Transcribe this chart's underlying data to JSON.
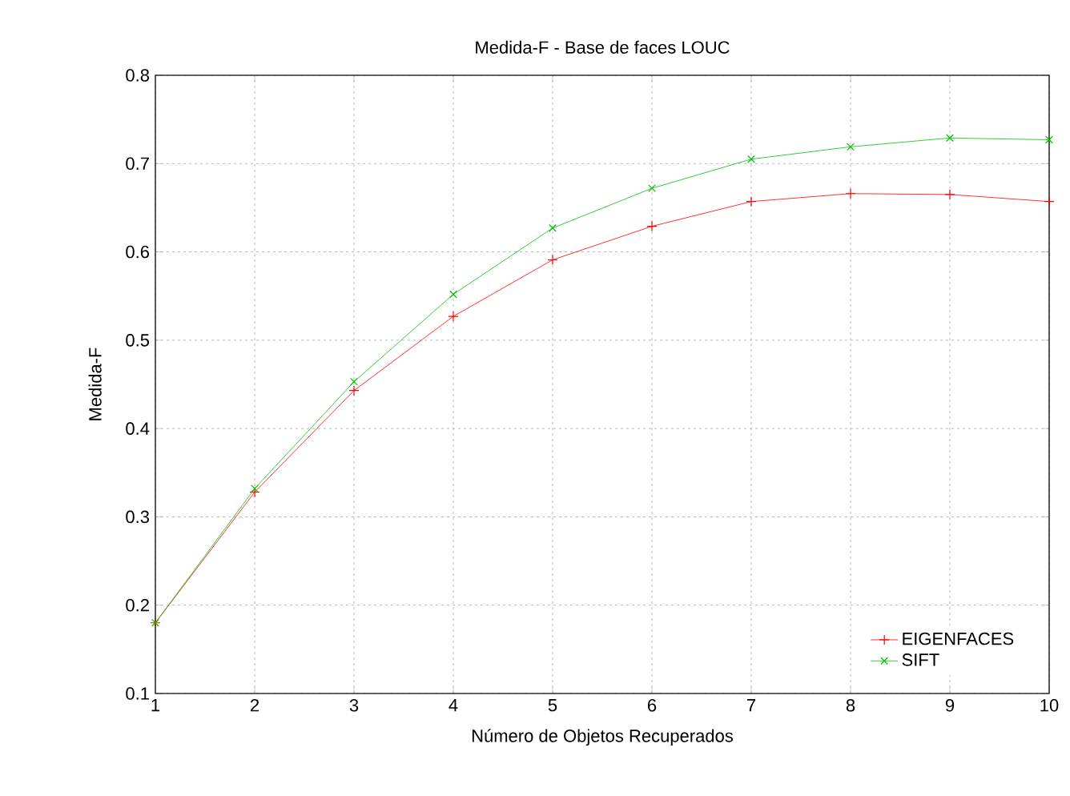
{
  "chart_data": {
    "type": "line",
    "title": "Medida-F - Base de faces LOUC",
    "xlabel": "Número de Objetos Recuperados",
    "ylabel": "Medida-F",
    "x": [
      1,
      2,
      3,
      4,
      5,
      6,
      7,
      8,
      9,
      10
    ],
    "series": [
      {
        "name": "EIGENFACES",
        "color": "#ff0000",
        "marker": "plus",
        "values": [
          0.18,
          0.328,
          0.443,
          0.527,
          0.591,
          0.629,
          0.657,
          0.666,
          0.665,
          0.657
        ]
      },
      {
        "name": "SIFT",
        "color": "#00c000",
        "marker": "cross",
        "values": [
          0.18,
          0.332,
          0.453,
          0.552,
          0.627,
          0.672,
          0.705,
          0.719,
          0.729,
          0.727
        ]
      }
    ],
    "xlim": [
      1,
      10
    ],
    "xticks": [
      1,
      2,
      3,
      4,
      5,
      6,
      7,
      8,
      9,
      10
    ],
    "ylim": [
      0.1,
      0.8
    ],
    "yticks": [
      0.1,
      0.2,
      0.3,
      0.4,
      0.5,
      0.6,
      0.7,
      0.8
    ],
    "grid": true,
    "legend": "bottom right",
    "line_style": "solid"
  }
}
